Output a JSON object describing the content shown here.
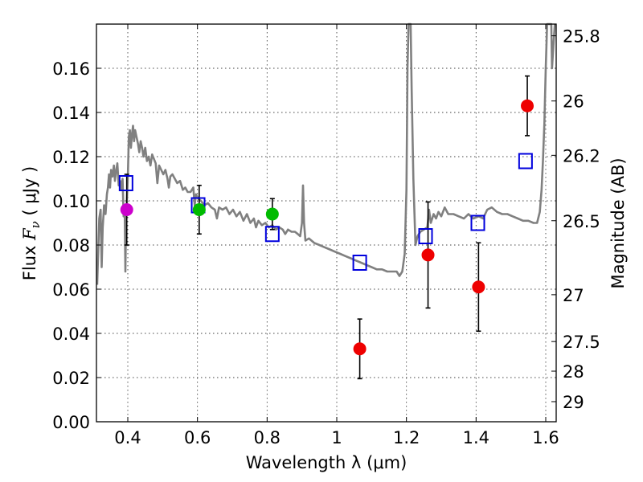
{
  "chart_data": {
    "type": "scatter",
    "xlabel": "Wavelength  λ (μm)",
    "ylabel": "Flux  F_ν  ( μJy )",
    "ylabel_parts": {
      "prefix": "Flux  ",
      "symbol": "F",
      "subscript": "ν",
      "units": "  ( μJy )"
    },
    "y2label": "Magnitude (AB)",
    "xlim": [
      0.31,
      1.63
    ],
    "ylim": [
      0.0,
      0.18
    ],
    "xticks": [
      {
        "value": 0.4,
        "label": "0.4"
      },
      {
        "value": 0.6,
        "label": "0.6"
      },
      {
        "value": 0.8,
        "label": "0.8"
      },
      {
        "value": 1.0,
        "label": "1"
      },
      {
        "value": 1.2,
        "label": "1.2"
      },
      {
        "value": 1.4,
        "label": "1.4"
      },
      {
        "value": 1.6,
        "label": "1.6"
      }
    ],
    "yticks": [
      {
        "value": 0.0,
        "label": "0.00"
      },
      {
        "value": 0.02,
        "label": "0.02"
      },
      {
        "value": 0.04,
        "label": "0.04"
      },
      {
        "value": 0.06,
        "label": "0.06"
      },
      {
        "value": 0.08,
        "label": "0.08"
      },
      {
        "value": 0.1,
        "label": "0.10"
      },
      {
        "value": 0.12,
        "label": "0.12"
      },
      {
        "value": 0.14,
        "label": "0.14"
      },
      {
        "value": 0.16,
        "label": "0.16"
      }
    ],
    "y2ticks": [
      {
        "flux": 0.1747,
        "label": "25.8"
      },
      {
        "flux": 0.1452,
        "label": "26"
      },
      {
        "flux": 0.1206,
        "label": "26.2"
      },
      {
        "flux": 0.091,
        "label": "26.5"
      },
      {
        "flux": 0.0575,
        "label": "27"
      },
      {
        "flux": 0.0363,
        "label": "27.5"
      },
      {
        "flux": 0.0229,
        "label": "28"
      },
      {
        "flux": 0.0091,
        "label": "29"
      }
    ],
    "grid": true,
    "series": [
      {
        "name": "model spectrum",
        "style": "line",
        "color": "#808080",
        "points": [
          [
            0.312,
            0.062
          ],
          [
            0.318,
            0.092
          ],
          [
            0.322,
            0.096
          ],
          [
            0.325,
            0.07
          ],
          [
            0.328,
            0.088
          ],
          [
            0.332,
            0.098
          ],
          [
            0.336,
            0.094
          ],
          [
            0.34,
            0.103
          ],
          [
            0.343,
            0.106
          ],
          [
            0.346,
            0.112
          ],
          [
            0.349,
            0.106
          ],
          [
            0.352,
            0.114
          ],
          [
            0.356,
            0.111
          ],
          [
            0.36,
            0.116
          ],
          [
            0.363,
            0.109
          ],
          [
            0.366,
            0.113
          ],
          [
            0.37,
            0.117
          ],
          [
            0.374,
            0.107
          ],
          [
            0.378,
            0.109
          ],
          [
            0.382,
            0.105
          ],
          [
            0.385,
            0.11
          ],
          [
            0.388,
            0.093
          ],
          [
            0.391,
            0.098
          ],
          [
            0.393,
            0.068
          ],
          [
            0.395,
            0.09
          ],
          [
            0.397,
            0.099
          ],
          [
            0.4,
            0.11
          ],
          [
            0.403,
            0.129
          ],
          [
            0.406,
            0.132
          ],
          [
            0.409,
            0.124
          ],
          [
            0.412,
            0.13
          ],
          [
            0.415,
            0.134
          ],
          [
            0.418,
            0.127
          ],
          [
            0.421,
            0.132
          ],
          [
            0.425,
            0.129
          ],
          [
            0.429,
            0.126
          ],
          [
            0.433,
            0.122
          ],
          [
            0.437,
            0.127
          ],
          [
            0.441,
            0.124
          ],
          [
            0.445,
            0.12
          ],
          [
            0.45,
            0.124
          ],
          [
            0.455,
            0.118
          ],
          [
            0.46,
            0.12
          ],
          [
            0.465,
            0.116
          ],
          [
            0.47,
            0.121
          ],
          [
            0.475,
            0.119
          ],
          [
            0.48,
            0.117
          ],
          [
            0.485,
            0.108
          ],
          [
            0.49,
            0.116
          ],
          [
            0.496,
            0.114
          ],
          [
            0.502,
            0.112
          ],
          [
            0.508,
            0.114
          ],
          [
            0.514,
            0.11
          ],
          [
            0.518,
            0.106
          ],
          [
            0.522,
            0.111
          ],
          [
            0.528,
            0.112
          ],
          [
            0.535,
            0.11
          ],
          [
            0.542,
            0.108
          ],
          [
            0.55,
            0.109
          ],
          [
            0.558,
            0.105
          ],
          [
            0.565,
            0.106
          ],
          [
            0.572,
            0.104
          ],
          [
            0.58,
            0.104
          ],
          [
            0.588,
            0.106
          ],
          [
            0.592,
            0.098
          ],
          [
            0.596,
            0.103
          ],
          [
            0.602,
            0.101
          ],
          [
            0.61,
            0.1
          ],
          [
            0.62,
            0.098
          ],
          [
            0.63,
            0.099
          ],
          [
            0.64,
            0.097
          ],
          [
            0.65,
            0.096
          ],
          [
            0.656,
            0.092
          ],
          [
            0.662,
            0.097
          ],
          [
            0.672,
            0.096
          ],
          [
            0.682,
            0.097
          ],
          [
            0.692,
            0.094
          ],
          [
            0.702,
            0.096
          ],
          [
            0.712,
            0.093
          ],
          [
            0.722,
            0.095
          ],
          [
            0.732,
            0.091
          ],
          [
            0.742,
            0.094
          ],
          [
            0.752,
            0.09
          ],
          [
            0.762,
            0.092
          ],
          [
            0.768,
            0.088
          ],
          [
            0.775,
            0.091
          ],
          [
            0.785,
            0.089
          ],
          [
            0.795,
            0.09
          ],
          [
            0.805,
            0.088
          ],
          [
            0.815,
            0.089
          ],
          [
            0.825,
            0.087
          ],
          [
            0.835,
            0.088
          ],
          [
            0.845,
            0.087
          ],
          [
            0.852,
            0.085
          ],
          [
            0.86,
            0.087
          ],
          [
            0.87,
            0.086
          ],
          [
            0.88,
            0.086
          ],
          [
            0.888,
            0.085
          ],
          [
            0.895,
            0.084
          ],
          [
            0.9,
            0.09
          ],
          [
            0.903,
            0.107
          ],
          [
            0.906,
            0.09
          ],
          [
            0.91,
            0.082
          ],
          [
            0.92,
            0.083
          ],
          [
            0.935,
            0.081
          ],
          [
            0.95,
            0.08
          ],
          [
            0.965,
            0.079
          ],
          [
            0.98,
            0.078
          ],
          [
            0.995,
            0.077
          ],
          [
            1.01,
            0.076
          ],
          [
            1.025,
            0.075
          ],
          [
            1.04,
            0.074
          ],
          [
            1.055,
            0.073
          ],
          [
            1.07,
            0.072
          ],
          [
            1.085,
            0.071
          ],
          [
            1.1,
            0.07
          ],
          [
            1.115,
            0.069
          ],
          [
            1.13,
            0.069
          ],
          [
            1.145,
            0.068
          ],
          [
            1.16,
            0.068
          ],
          [
            1.172,
            0.068
          ],
          [
            1.18,
            0.066
          ],
          [
            1.188,
            0.068
          ],
          [
            1.195,
            0.076
          ],
          [
            1.2,
            0.105
          ],
          [
            1.203,
            0.16
          ],
          [
            1.206,
            0.18
          ],
          [
            1.212,
            0.18
          ],
          [
            1.215,
            0.15
          ],
          [
            1.22,
            0.11
          ],
          [
            1.226,
            0.08
          ],
          [
            1.232,
            0.084
          ],
          [
            1.24,
            0.086
          ],
          [
            1.25,
            0.087
          ],
          [
            1.26,
            0.088
          ],
          [
            1.265,
            0.096
          ],
          [
            1.27,
            0.09
          ],
          [
            1.278,
            0.094
          ],
          [
            1.285,
            0.092
          ],
          [
            1.292,
            0.095
          ],
          [
            1.3,
            0.093
          ],
          [
            1.31,
            0.097
          ],
          [
            1.32,
            0.094
          ],
          [
            1.335,
            0.094
          ],
          [
            1.35,
            0.093
          ],
          [
            1.365,
            0.092
          ],
          [
            1.378,
            0.094
          ],
          [
            1.392,
            0.092
          ],
          [
            1.408,
            0.093
          ],
          [
            1.42,
            0.092
          ],
          [
            1.432,
            0.096
          ],
          [
            1.445,
            0.097
          ],
          [
            1.46,
            0.095
          ],
          [
            1.475,
            0.094
          ],
          [
            1.49,
            0.094
          ],
          [
            1.505,
            0.093
          ],
          [
            1.52,
            0.092
          ],
          [
            1.535,
            0.091
          ],
          [
            1.55,
            0.091
          ],
          [
            1.565,
            0.09
          ],
          [
            1.575,
            0.09
          ],
          [
            1.583,
            0.095
          ],
          [
            1.588,
            0.105
          ],
          [
            1.592,
            0.118
          ],
          [
            1.596,
            0.135
          ],
          [
            1.6,
            0.16
          ],
          [
            1.604,
            0.18
          ],
          [
            1.616,
            0.18
          ],
          [
            1.618,
            0.16
          ],
          [
            1.622,
            0.17
          ],
          [
            1.626,
            0.18
          ]
        ]
      },
      {
        "name": "model photometry",
        "style": "open-square",
        "color": "#0000dd",
        "points": [
          [
            0.395,
            0.108
          ],
          [
            0.602,
            0.098
          ],
          [
            0.815,
            0.085
          ],
          [
            1.066,
            0.072
          ],
          [
            1.255,
            0.084
          ],
          [
            1.405,
            0.09
          ],
          [
            1.542,
            0.118
          ]
        ]
      },
      {
        "name": "magenta measurement",
        "style": "filled-circle",
        "color": "#cc00cc",
        "points": [
          {
            "x": 0.397,
            "y": 0.096,
            "err": 0.016
          }
        ]
      },
      {
        "name": "green measurements",
        "style": "filled-circle",
        "color": "#00bb00",
        "points": [
          {
            "x": 0.605,
            "y": 0.096,
            "err": 0.011
          },
          {
            "x": 0.815,
            "y": 0.094,
            "err": 0.007
          }
        ]
      },
      {
        "name": "red measurements",
        "style": "filled-circle",
        "color": "#ee0000",
        "points": [
          {
            "x": 1.066,
            "y": 0.033,
            "err": 0.0135
          },
          {
            "x": 1.262,
            "y": 0.0755,
            "err": 0.024
          },
          {
            "x": 1.407,
            "y": 0.061,
            "err": 0.02
          },
          {
            "x": 1.547,
            "y": 0.143,
            "err": 0.0135
          }
        ]
      }
    ]
  }
}
